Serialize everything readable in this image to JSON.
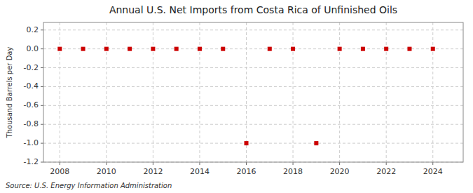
{
  "chart_data": {
    "type": "scatter",
    "title": "Annual U.S. Net Imports from Costa Rica of Unfinished Oils",
    "ylabel": "Thousand Barrels per Day",
    "source": "Source: U.S. Energy Information Administration",
    "x": [
      2008,
      2009,
      2010,
      2011,
      2012,
      2013,
      2014,
      2015,
      2016,
      2017,
      2018,
      2019,
      2020,
      2021,
      2022,
      2023,
      2024
    ],
    "values": [
      0,
      0,
      0,
      0,
      0,
      0,
      0,
      0,
      -1.0,
      0,
      0,
      -1.0,
      0,
      0,
      0,
      0,
      0
    ],
    "color": "#cc0000",
    "marker": "square",
    "grid": true,
    "xlim": [
      2007.3,
      2025.3
    ],
    "ylim": [
      -1.2,
      0.28
    ],
    "xticks": [
      2008,
      2010,
      2012,
      2014,
      2016,
      2018,
      2020,
      2022,
      2024
    ],
    "yticks": [
      0.2,
      {
        "value": 0.0,
        "label": "0.0"
      },
      -0.2,
      -0.4,
      -0.6,
      -0.8,
      {
        "value": -1.0,
        "label": "-1.0"
      },
      -1.2
    ]
  }
}
